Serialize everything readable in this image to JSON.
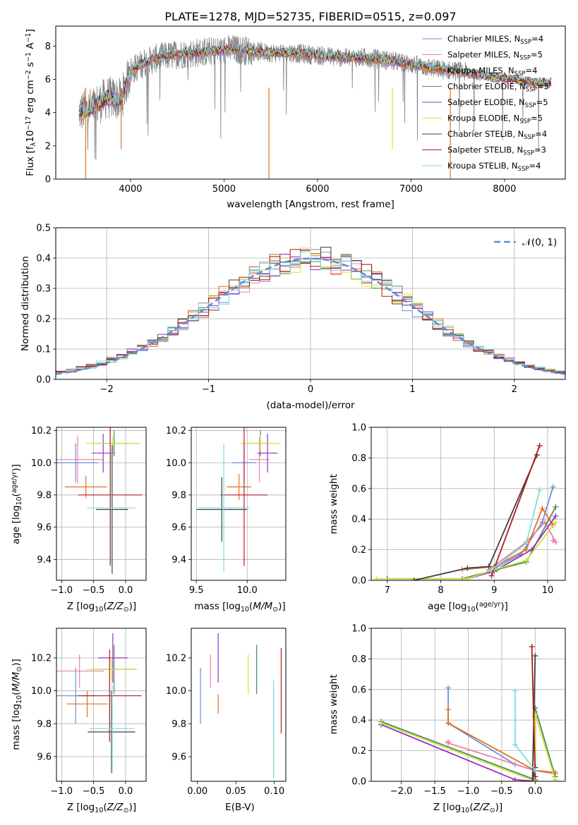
{
  "figure_title": "PLATE=1278, MJD=52735, FIBERID=0515, z=0.097",
  "chart_data": [
    {
      "id": "spectrum",
      "type": "line",
      "xlabel": "wavelength [Angstrom, rest frame]",
      "ylabel_parts": [
        "Flux [f",
        "λ",
        "10",
        "−17",
        " erg cm",
        "−2",
        " s",
        "−1",
        " A",
        "−1",
        "]"
      ],
      "xlim": [
        3200,
        8650
      ],
      "ylim": [
        0,
        9.2
      ],
      "xticks": [
        4000,
        5000,
        6000,
        7000,
        8000
      ],
      "yticks": [
        0,
        2,
        4,
        6,
        8
      ],
      "legend_position": "right",
      "grid": false,
      "continuum": {
        "x": [
          3450,
          3600,
          3750,
          3900,
          4000,
          4150,
          4300,
          4500,
          4700,
          4900,
          5100,
          5300,
          5500,
          5700,
          5900,
          6100,
          6300,
          6500,
          6700,
          6900,
          7100,
          7300,
          7500,
          7700,
          7900,
          8100,
          8300,
          8500
        ],
        "y": [
          4.0,
          4.3,
          4.9,
          4.8,
          6.5,
          7.0,
          7.3,
          7.5,
          7.6,
          7.7,
          7.8,
          7.7,
          7.6,
          7.6,
          7.5,
          7.4,
          7.3,
          7.3,
          7.2,
          7.0,
          6.8,
          6.6,
          6.5,
          6.3,
          6.1,
          6.0,
          5.8,
          5.8
        ]
      },
      "series": [
        {
          "name": "Chabrier MILES, N",
          "nssp": "4",
          "color": "#6b8fdc"
        },
        {
          "name": "Salpeter MILES, N",
          "nssp": "5",
          "color": "#ee7fa8"
        },
        {
          "name": "Kroupa MILES, N",
          "nssp": "4",
          "color": "#e0711f"
        },
        {
          "name": "Chabrier ELODIE, N",
          "nssp": "5",
          "color": "#4c8f5b"
        },
        {
          "name": "Salpeter ELODIE, N",
          "nssp": "5",
          "color": "#9a2fc2"
        },
        {
          "name": "Kroupa ELODIE, N",
          "nssp": "5",
          "color": "#cde63a"
        },
        {
          "name": "Chabrier STELIB, N",
          "nssp": "4",
          "color": "#404040"
        },
        {
          "name": "Salpeter STELIB, N",
          "nssp": "3",
          "color": "#b3191c"
        },
        {
          "name": "Kroupa STELIB, N",
          "nssp": "4",
          "color": "#7fdcdc"
        }
      ],
      "data_color": "#808080"
    },
    {
      "id": "residuals",
      "type": "line",
      "xlabel": "(data-model)/error",
      "ylabel": "Normed distribution",
      "xlim": [
        -2.5,
        2.5
      ],
      "ylim": [
        0,
        0.5
      ],
      "xticks": [
        -2,
        -1,
        0,
        1,
        2
      ],
      "yticks": [
        0.0,
        0.1,
        0.2,
        0.3,
        0.4,
        0.5
      ],
      "grid": true,
      "legend_position": "upper right",
      "gaussian_label": "𝒩(0, 1)",
      "gaussian_color": "#5b8bd8",
      "bin_width": 0.1
    },
    {
      "id": "age-vs-Z",
      "type": "scatter",
      "xlabel_parts": [
        "Z [log",
        "10",
        "(",
        "Z/Z",
        "⊙",
        ")]"
      ],
      "ylabel_parts": [
        "age  [log",
        "10",
        "(",
        "age/yr",
        ")]"
      ],
      "xlim": [
        -1.08,
        0.32
      ],
      "ylim": [
        9.27,
        10.22
      ],
      "xticks": [
        -1.0,
        -0.5,
        0.0
      ],
      "yticks": [
        9.4,
        9.6,
        9.8,
        10.0,
        10.2
      ],
      "grid": true,
      "points": [
        {
          "series": 0,
          "x": -0.78,
          "y": 10.0,
          "xerr": 0.35,
          "yerr": 0.12
        },
        {
          "series": 1,
          "x": -0.75,
          "y": 10.02,
          "xerr": 0.4,
          "yerr": 0.15
        },
        {
          "series": 2,
          "x": -0.62,
          "y": 9.85,
          "xerr": 0.33,
          "yerr": 0.07
        },
        {
          "series": 3,
          "x": -0.18,
          "y": 10.12,
          "xerr": 0.3,
          "yerr": 0.08
        },
        {
          "series": 4,
          "x": -0.35,
          "y": 10.06,
          "xerr": 0.18,
          "yerr": 0.12
        },
        {
          "series": 5,
          "x": -0.2,
          "y": 10.12,
          "xerr": 0.42,
          "yerr": 0.05
        },
        {
          "series": 6,
          "x": -0.21,
          "y": 9.71,
          "xerr": 0.25,
          "yerr": 0.4
        },
        {
          "series": 7,
          "x": -0.24,
          "y": 9.8,
          "xerr": 0.5,
          "yerr": 0.44
        },
        {
          "series": 8,
          "x": -0.22,
          "y": 9.72,
          "xerr": 0.38,
          "yerr": 0.35
        }
      ]
    },
    {
      "id": "age-vs-mass",
      "type": "scatter",
      "xlabel_parts": [
        "mass [log",
        "10",
        "(",
        "M/M",
        "⊙",
        ")]"
      ],
      "xlim": [
        9.45,
        10.38
      ],
      "ylim": [
        9.27,
        10.22
      ],
      "xticks": [
        9.5,
        10.0
      ],
      "yticks": [
        9.4,
        9.6,
        9.8,
        10.0,
        10.2
      ],
      "grid": true,
      "points": [
        {
          "series": 0,
          "x": 9.97,
          "y": 10.0,
          "xerr": 0.12,
          "yerr": 0.12
        },
        {
          "series": 1,
          "x": 10.12,
          "y": 10.02,
          "xerr": 0.1,
          "yerr": 0.14
        },
        {
          "series": 2,
          "x": 9.92,
          "y": 9.85,
          "xerr": 0.12,
          "yerr": 0.08
        },
        {
          "series": 3,
          "x": 10.13,
          "y": 10.12,
          "xerr": 0.1,
          "yerr": 0.08
        },
        {
          "series": 4,
          "x": 10.2,
          "y": 10.06,
          "xerr": 0.1,
          "yerr": 0.12
        },
        {
          "series": 5,
          "x": 10.13,
          "y": 10.12,
          "xerr": 0.2,
          "yerr": 0.05
        },
        {
          "series": 6,
          "x": 9.75,
          "y": 9.71,
          "xerr": 0.25,
          "yerr": 0.2
        },
        {
          "series": 7,
          "x": 9.97,
          "y": 9.8,
          "xerr": 0.23,
          "yerr": 0.44
        },
        {
          "series": 8,
          "x": 9.77,
          "y": 9.72,
          "xerr": 0.25,
          "yerr": 0.4
        }
      ]
    },
    {
      "id": "massweight-vs-age",
      "type": "line",
      "xlabel_parts": [
        "age  [log",
        "10",
        "(",
        "age/yr",
        ")]"
      ],
      "ylabel": "mass weight",
      "xlim": [
        6.7,
        10.33
      ],
      "ylim": [
        0,
        1.0
      ],
      "xticks": [
        7,
        8,
        9,
        10
      ],
      "yticks": [
        0.0,
        0.2,
        0.4,
        0.6,
        0.8,
        1.0
      ],
      "grid": true,
      "series": [
        {
          "series": 0,
          "x": [
            8.9,
            9.5,
            9.9,
            10.1
          ],
          "y": [
            0.06,
            0.17,
            0.38,
            0.61
          ]
        },
        {
          "series": 1,
          "x": [
            8.9,
            9.6,
            9.95,
            10.15,
            10.1
          ],
          "y": [
            0.07,
            0.25,
            0.38,
            0.25,
            0.26
          ]
        },
        {
          "series": 2,
          "x": [
            8.4,
            9.0,
            9.6,
            9.9,
            10.1
          ],
          "y": [
            0.07,
            0.09,
            0.2,
            0.47,
            0.36
          ]
        },
        {
          "series": 3,
          "x": [
            8.4,
            9.05,
            9.6,
            10.15
          ],
          "y": [
            0.01,
            0.07,
            0.12,
            0.48
          ]
        },
        {
          "series": 4,
          "x": [
            7.0,
            8.5,
            9.0,
            9.7,
            10.15
          ],
          "y": [
            0.01,
            0.01,
            0.06,
            0.2,
            0.42
          ]
        },
        {
          "series": 5,
          "x": [
            6.8,
            8.5,
            9.0,
            9.6,
            10.15
          ],
          "y": [
            0.01,
            0.01,
            0.07,
            0.13,
            0.38
          ]
        },
        {
          "series": 6,
          "x": [
            7.5,
            8.5,
            8.9,
            9.8
          ],
          "y": [
            0.0,
            0.08,
            0.09,
            0.82
          ]
        },
        {
          "series": 7,
          "x": [
            8.95,
            9.85
          ],
          "y": [
            0.03,
            0.88
          ]
        },
        {
          "series": 8,
          "x": [
            8.95,
            9.6,
            9.85
          ],
          "y": [
            0.07,
            0.24,
            0.59
          ]
        }
      ]
    },
    {
      "id": "mass-vs-Z",
      "type": "scatter",
      "xlabel_parts": [
        "Z [log",
        "10",
        "(",
        "Z/Z",
        "⊙",
        ")]"
      ],
      "ylabel_parts": [
        "mass [log",
        "10",
        "(",
        "M/M",
        "⊙",
        ")]"
      ],
      "xlim": [
        -1.08,
        0.32
      ],
      "ylim": [
        9.45,
        10.38
      ],
      "xticks": [
        -1.0,
        -0.5,
        0.0
      ],
      "yticks": [
        9.6,
        9.8,
        10.0,
        10.2
      ],
      "grid": true,
      "points": [
        {
          "series": 0,
          "x": -0.78,
          "y": 9.97,
          "xerr": 0.38,
          "yerr": 0.17
        },
        {
          "series": 1,
          "x": -0.72,
          "y": 10.12,
          "xerr": 0.38,
          "yerr": 0.1
        },
        {
          "series": 2,
          "x": -0.6,
          "y": 9.92,
          "xerr": 0.32,
          "yerr": 0.08
        },
        {
          "series": 3,
          "x": -0.18,
          "y": 10.13,
          "xerr": 0.35,
          "yerr": 0.15
        },
        {
          "series": 4,
          "x": -0.2,
          "y": 10.2,
          "xerr": 0.23,
          "yerr": 0.15
        },
        {
          "series": 5,
          "x": -0.22,
          "y": 10.13,
          "xerr": 0.4,
          "yerr": 0.07
        },
        {
          "series": 6,
          "x": -0.22,
          "y": 9.75,
          "xerr": 0.37,
          "yerr": 0.25
        },
        {
          "series": 7,
          "x": -0.25,
          "y": 9.97,
          "xerr": 0.5,
          "yerr": 0.28
        },
        {
          "series": 8,
          "x": -0.21,
          "y": 9.77,
          "xerr": 0.35,
          "yerr": 0.27
        }
      ]
    },
    {
      "id": "mass-vs-ebv",
      "type": "scatter",
      "xlabel": "E(B-V)",
      "xlim": [
        -0.008,
        0.115
      ],
      "ylim": [
        9.45,
        10.38
      ],
      "xticks": [
        0.0,
        0.05,
        0.1
      ],
      "yticks": [
        9.6,
        9.8,
        10.0,
        10.2
      ],
      "grid": false,
      "points": [
        {
          "series": 0,
          "x": 0.004,
          "y": 9.97,
          "xerr": 0.0,
          "yerr": 0.17
        },
        {
          "series": 1,
          "x": 0.017,
          "y": 10.12,
          "xerr": 0.0,
          "yerr": 0.1
        },
        {
          "series": 2,
          "x": 0.027,
          "y": 9.92,
          "xerr": 0.0,
          "yerr": 0.06
        },
        {
          "series": 3,
          "x": 0.077,
          "y": 10.13,
          "xerr": 0.0,
          "yerr": 0.15
        },
        {
          "series": 4,
          "x": 0.027,
          "y": 10.2,
          "xerr": 0.0,
          "yerr": 0.15
        },
        {
          "series": 5,
          "x": 0.066,
          "y": 10.1,
          "xerr": 0.0,
          "yerr": 0.12
        },
        {
          "series": 6,
          "x": 0.099,
          "y": 9.75,
          "xerr": 0.0,
          "yerr": 0.27
        },
        {
          "series": 7,
          "x": 0.109,
          "y": 10.0,
          "xerr": 0.0,
          "yerr": 0.26
        },
        {
          "series": 8,
          "x": 0.099,
          "y": 9.77,
          "xerr": 0.0,
          "yerr": 0.3
        }
      ]
    },
    {
      "id": "massweight-vs-Z",
      "type": "line",
      "xlabel_parts": [
        "Z [log",
        "10",
        "(",
        "Z/Z",
        "⊙",
        ")]"
      ],
      "ylabel": "mass weight",
      "xlim": [
        -2.45,
        0.45
      ],
      "ylim": [
        0,
        1.0
      ],
      "xticks": [
        -2.0,
        -1.5,
        -1.0,
        -0.5,
        0.0
      ],
      "yticks": [
        0.0,
        0.2,
        0.4,
        0.6,
        0.8,
        1.0
      ],
      "grid": true,
      "series": [
        {
          "series": 0,
          "x": [
            -1.3,
            -1.3,
            -0.3,
            0.0,
            0.0
          ],
          "y": [
            0.61,
            0.38,
            0.11,
            0.07,
            0.0
          ]
        },
        {
          "series": 1,
          "x": [
            -1.3,
            -1.3,
            0.0,
            0.3
          ],
          "y": [
            0.26,
            0.25,
            0.07,
            0.06
          ]
        },
        {
          "series": 2,
          "x": [
            -1.3,
            -1.3,
            0.0,
            0.3
          ],
          "y": [
            0.47,
            0.38,
            0.07,
            0.05
          ]
        },
        {
          "series": 3,
          "x": [
            -2.3,
            0.0,
            0.0,
            0.3
          ],
          "y": [
            0.39,
            0.01,
            0.48,
            0.03
          ]
        },
        {
          "series": 4,
          "x": [
            -2.3,
            -0.3,
            0.0,
            0.0
          ],
          "y": [
            0.37,
            0.01,
            0.0,
            0.42
          ]
        },
        {
          "series": 5,
          "x": [
            -2.3,
            0.0,
            0.0,
            0.3
          ],
          "y": [
            0.38,
            0.0,
            0.44,
            0.01
          ]
        },
        {
          "series": 6,
          "x": [
            0.0,
            -0.04,
            0.0
          ],
          "y": [
            0.82,
            0.0,
            0.09
          ]
        },
        {
          "series": 7,
          "x": [
            -0.05,
            0.0
          ],
          "y": [
            0.88,
            0.03
          ]
        },
        {
          "series": 8,
          "x": [
            -0.3,
            -0.3,
            0.0
          ],
          "y": [
            0.59,
            0.24,
            0.07
          ]
        }
      ]
    }
  ]
}
